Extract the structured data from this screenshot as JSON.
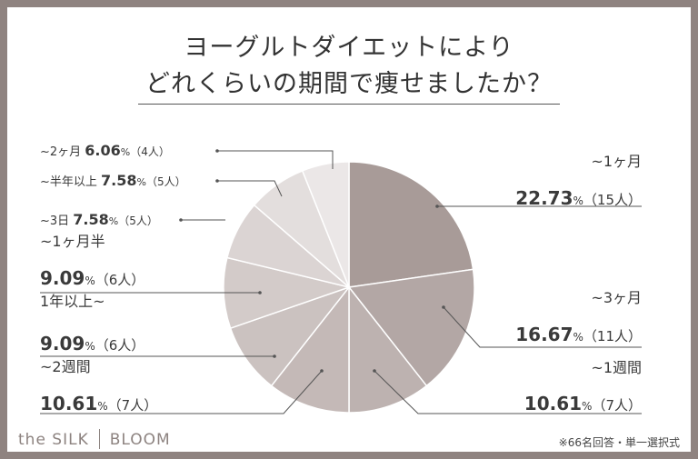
{
  "title_line1": "ヨーグルトダイエットにより",
  "title_line2": "どれくらいの期間で痩せましたか？",
  "note": "※66名回答・単一選択式",
  "logo": {
    "left": "the SILK",
    "right": "BLOOM"
  },
  "chart_data": {
    "type": "pie",
    "title": "ヨーグルトダイエットによりどれくらいの期間で痩せましたか？",
    "categories": [
      "~1ヶ月",
      "~3ヶ月",
      "~1週間",
      "~2週間",
      "1年以上~",
      "~1ヶ月半",
      "~3日",
      "~半年以上",
      "~2ヶ月"
    ],
    "values": [
      22.73,
      16.67,
      10.61,
      10.61,
      9.09,
      9.09,
      7.58,
      7.58,
      6.06
    ],
    "counts": [
      15,
      11,
      7,
      7,
      6,
      6,
      5,
      5,
      4
    ],
    "colors": [
      "#a89b98",
      "#b3a7a5",
      "#bdb2b0",
      "#c4b9b7",
      "#cbc2c0",
      "#d3cbc9",
      "#dbd4d3",
      "#e3dedd",
      "#ebe7e7"
    ],
    "labels": [
      {
        "name": "~1ヶ月",
        "pct": "22.73",
        "cnt": "（15人）"
      },
      {
        "name": "~3ヶ月",
        "pct": "16.67",
        "cnt": "（11人）"
      },
      {
        "name": "~1週間",
        "pct": "10.61",
        "cnt": "（7人）"
      },
      {
        "name": "~2週間",
        "pct": "10.61",
        "cnt": "（7人）"
      },
      {
        "name": "1年以上~",
        "pct": "9.09",
        "cnt": "（6人）"
      },
      {
        "name": "~1ヶ月半",
        "pct": "9.09",
        "cnt": "（6人）"
      },
      {
        "name": "~3日",
        "pct": "7.58",
        "cnt": "（5人）"
      },
      {
        "name": "~半年以上",
        "pct": "7.58",
        "cnt": "（5人）"
      },
      {
        "name": "~2ヶ月",
        "pct": "6.06",
        "cnt": "（4人）"
      }
    ],
    "unit": "%",
    "legend": "none"
  }
}
